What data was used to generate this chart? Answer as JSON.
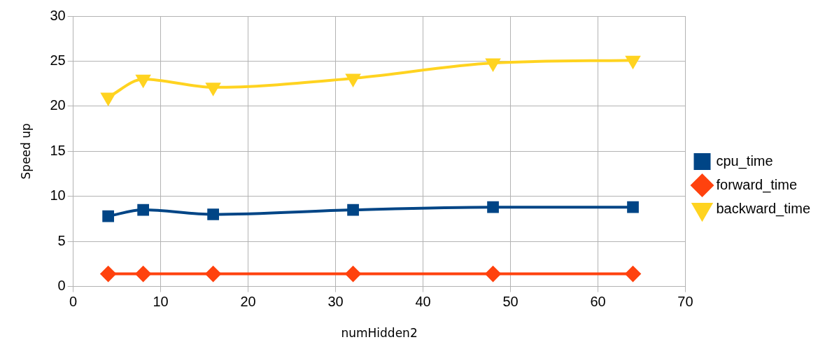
{
  "chart_data": {
    "type": "line",
    "xlabel": "numHidden2",
    "ylabel": "Speed up",
    "xlim": [
      0,
      70
    ],
    "xticks": [
      0,
      10,
      20,
      30,
      40,
      50,
      60,
      70
    ],
    "ylim": [
      0,
      30
    ],
    "yticks": [
      0,
      5,
      10,
      15,
      20,
      25,
      30
    ],
    "grid": true,
    "legend": "right",
    "series": [
      {
        "name": "cpu_time",
        "color": "#004586",
        "marker": "square",
        "x": [
          4,
          8,
          16,
          32,
          48,
          64
        ],
        "values": [
          7.8,
          8.5,
          8.0,
          8.5,
          8.8,
          8.8
        ]
      },
      {
        "name": "forward_time",
        "color": "#ff420e",
        "marker": "diamond",
        "x": [
          4,
          8,
          16,
          32,
          48,
          64
        ],
        "values": [
          1.4,
          1.4,
          1.4,
          1.4,
          1.4,
          1.4
        ]
      },
      {
        "name": "backward_time",
        "color": "#ffd320",
        "marker": "triangle-down",
        "x": [
          4,
          8,
          16,
          32,
          48,
          64
        ],
        "values": [
          21,
          23,
          22.1,
          23.1,
          24.8,
          25.1
        ]
      }
    ]
  }
}
